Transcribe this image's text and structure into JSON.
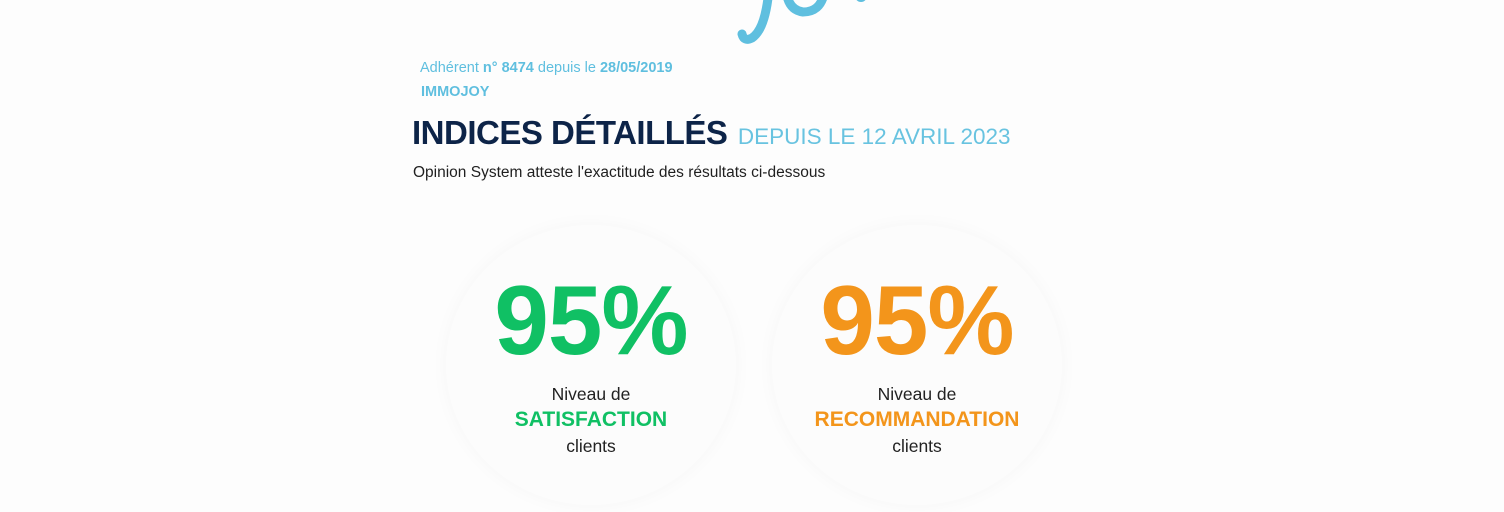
{
  "header": {
    "member_label": "Adhérent",
    "member_number": "n° 8474",
    "since_label": "depuis le",
    "member_date": "28/05/2019",
    "company_name": "IMMOJOY"
  },
  "section": {
    "title": "INDICES DÉTAILLÉS",
    "subtitle": "DEPUIS LE 12 AVRIL 2023",
    "attestation": "Opinion System atteste l'exactitude des résultats ci-dessous"
  },
  "scores": [
    {
      "value": "95%",
      "line1": "Niveau de",
      "keyword": "SATISFACTION",
      "line3": "clients",
      "color": "#10c064"
    },
    {
      "value": "95%",
      "line1": "Niveau de",
      "keyword": "RECOMMANDATION",
      "line3": "clients",
      "color": "#f3951b"
    }
  ],
  "colors": {
    "accent_blue": "#5fbfdf",
    "navy": "#0d2448",
    "green": "#10c064",
    "orange": "#f3951b"
  },
  "icons": {
    "logo": "opinion-system-logo"
  }
}
